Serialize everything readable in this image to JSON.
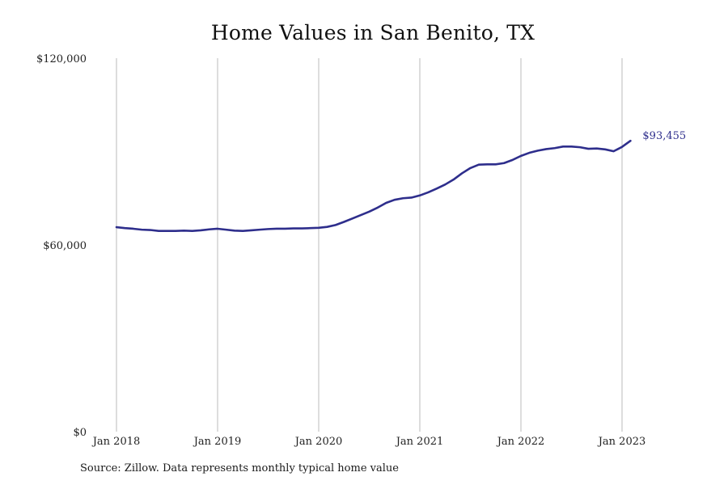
{
  "chart_data": {
    "type": "line",
    "title": "Home Values in San Benito, TX",
    "source": "Source: Zillow. Data represents monthly typical home value",
    "xlabel": "",
    "ylabel": "",
    "ylim": [
      0,
      120000
    ],
    "y_ticks": [
      {
        "value": 0,
        "label": "$0"
      },
      {
        "value": 60000,
        "label": "$60,000"
      },
      {
        "value": 120000,
        "label": "$120,000"
      }
    ],
    "x_ticks": [
      {
        "value": "2018-01",
        "label": "Jan 2018"
      },
      {
        "value": "2019-01",
        "label": "Jan 2019"
      },
      {
        "value": "2020-01",
        "label": "Jan 2020"
      },
      {
        "value": "2021-01",
        "label": "Jan 2021"
      },
      {
        "value": "2022-01",
        "label": "Jan 2022"
      },
      {
        "value": "2023-01",
        "label": "Jan 2023"
      }
    ],
    "grid": {
      "vertical": true,
      "horizontal": false
    },
    "line_color": "#2e2e8c",
    "grid_color": "#bbbbbb",
    "end_label": "$93,455",
    "series": [
      {
        "x": [
          "2018-01",
          "2018-02",
          "2018-03",
          "2018-04",
          "2018-05",
          "2018-06",
          "2018-07",
          "2018-08",
          "2018-09",
          "2018-10",
          "2018-11",
          "2018-12",
          "2019-01",
          "2019-02",
          "2019-03",
          "2019-04",
          "2019-05",
          "2019-06",
          "2019-07",
          "2019-08",
          "2019-09",
          "2019-10",
          "2019-11",
          "2019-12",
          "2020-01",
          "2020-02",
          "2020-03",
          "2020-04",
          "2020-05",
          "2020-06",
          "2020-07",
          "2020-08",
          "2020-09",
          "2020-10",
          "2020-11",
          "2020-12",
          "2021-01",
          "2021-02",
          "2021-03",
          "2021-04",
          "2021-05",
          "2021-06",
          "2021-07",
          "2021-08",
          "2021-09",
          "2021-10",
          "2021-11",
          "2021-12",
          "2022-01",
          "2022-02",
          "2022-03",
          "2022-04",
          "2022-05",
          "2022-06",
          "2022-07",
          "2022-08",
          "2022-09",
          "2022-10",
          "2022-11",
          "2022-12",
          "2023-01",
          "2023-02"
        ],
        "values": [
          65700,
          65400,
          65200,
          64900,
          64800,
          64500,
          64500,
          64500,
          64600,
          64500,
          64700,
          65000,
          65200,
          64900,
          64600,
          64500,
          64700,
          64900,
          65100,
          65200,
          65200,
          65300,
          65300,
          65400,
          65500,
          65800,
          66400,
          67400,
          68500,
          69600,
          70700,
          72000,
          73500,
          74500,
          75000,
          75200,
          75900,
          76900,
          78100,
          79400,
          81000,
          83000,
          84700,
          85800,
          85900,
          85900,
          86300,
          87300,
          88600,
          89600,
          90300,
          90800,
          91100,
          91600,
          91600,
          91400,
          90900,
          91000,
          90700,
          90100,
          91500,
          93455
        ]
      }
    ]
  }
}
